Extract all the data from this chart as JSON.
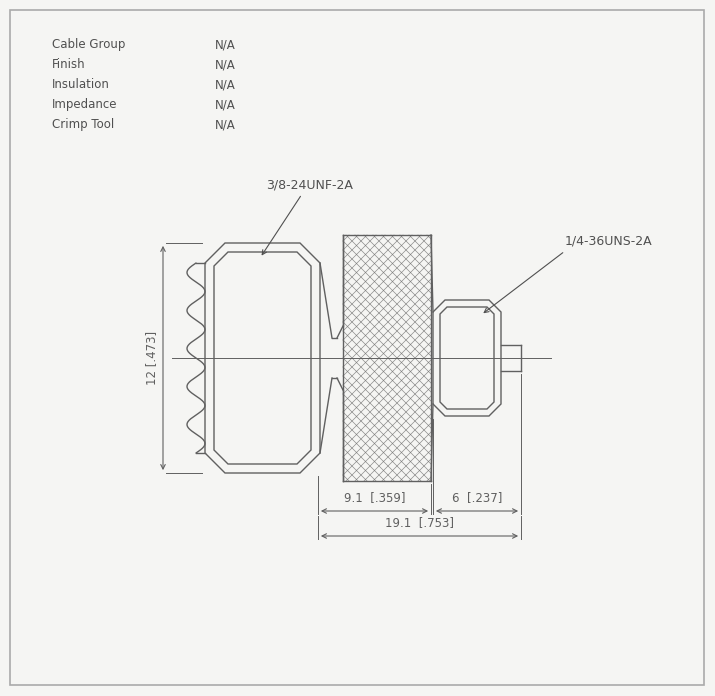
{
  "bg_color": "#f5f5f3",
  "line_color": "#606060",
  "dim_color": "#606060",
  "text_color": "#505050",
  "title_info": [
    [
      "Cable Group",
      "N/A"
    ],
    [
      "Finish",
      "N/A"
    ],
    [
      "Insulation",
      "N/A"
    ],
    [
      "Impedance",
      "N/A"
    ],
    [
      "Crimp Tool",
      "N/A"
    ]
  ],
  "thread_label_left": "3/8-24UNF-2A",
  "thread_label_right": "1/4-36UNS-2A",
  "dim_height": "12 [.473]",
  "dim_width1": "9.1  [.359]",
  "dim_width2": "6  [.237]",
  "dim_width3": "19.1  [.753]"
}
